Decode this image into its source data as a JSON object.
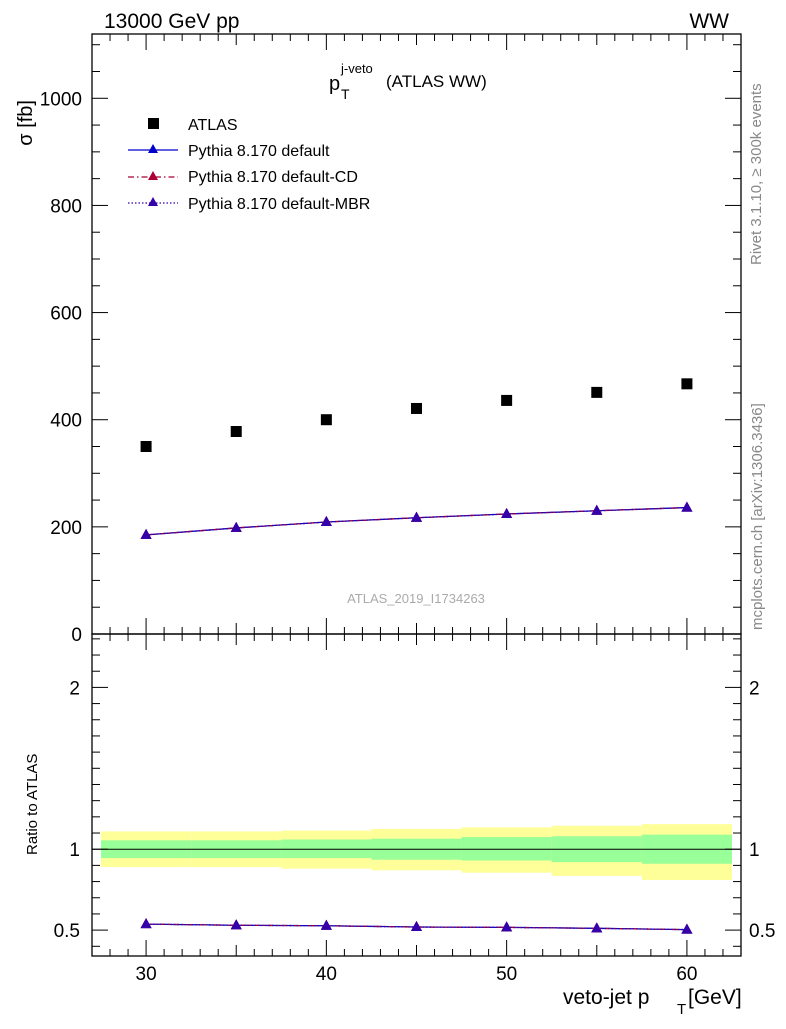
{
  "header": {
    "left": "13000 GeV pp",
    "right": "WW"
  },
  "side_labels": {
    "rivet": "Rivet 3.1.10, ≥ 300k events",
    "mcplots": "mcplots.cern.ch [arXiv:1306.3436]"
  },
  "watermark": "ATLAS_2019_I1734263",
  "chart_data": [
    {
      "type": "scatter",
      "title_main": "p",
      "title_sup": "j-veto",
      "title_sub": "T",
      "title_rest": "(ATLAS WW)",
      "ylabel": "σ [fb]",
      "ylim": [
        0,
        1120
      ],
      "yticks": [
        0,
        200,
        400,
        600,
        800,
        1000
      ],
      "ytick_labels": [
        "0",
        "200",
        "400",
        "600",
        "800",
        "1000"
      ],
      "xlim": [
        27.0,
        63.0
      ],
      "x": [
        30,
        35,
        40,
        45,
        50,
        55,
        60
      ],
      "series": [
        {
          "name": "ATLAS",
          "style": "square",
          "color": "#000000",
          "values": [
            350,
            378,
            400,
            421,
            436,
            451,
            467
          ]
        },
        {
          "name": "Pythia 8.170 default",
          "style": "solid",
          "color": "#0000cc",
          "values": [
            185,
            198,
            209,
            217,
            224,
            230,
            236
          ]
        },
        {
          "name": "Pythia 8.170 default-CD",
          "style": "dashdot",
          "color": "#aa0033",
          "values": [
            185,
            198,
            209,
            217,
            224,
            230,
            236
          ]
        },
        {
          "name": "Pythia 8.170 default-MBR",
          "style": "dotted",
          "color": "#3300aa",
          "values": [
            185,
            198,
            209,
            217,
            224,
            230,
            236
          ]
        }
      ],
      "legend_position": "top-left"
    },
    {
      "type": "line",
      "ylabel": "Ratio to ATLAS",
      "xlabel_main": "veto-jet p",
      "xlabel_sub": "T",
      "xlabel_rest": "[GeV]",
      "ylim": [
        0.34,
        2.33
      ],
      "yticks": [
        0.5,
        1,
        2
      ],
      "ytick_labels": [
        "0.5",
        "1",
        "2"
      ],
      "xlim": [
        27.0,
        63.0
      ],
      "xticks": [
        30,
        40,
        50,
        60
      ],
      "xtick_labels": [
        "30",
        "40",
        "50",
        "60"
      ],
      "bands": {
        "edges": [
          27.5,
          32.5,
          37.5,
          42.5,
          47.5,
          52.5,
          57.5,
          62.5
        ],
        "stat_low": [
          0.945,
          0.945,
          0.945,
          0.935,
          0.93,
          0.92,
          0.91
        ],
        "stat_high": [
          1.055,
          1.055,
          1.06,
          1.065,
          1.075,
          1.08,
          1.09
        ],
        "total_low": [
          0.89,
          0.89,
          0.88,
          0.87,
          0.855,
          0.835,
          0.81
        ],
        "total_high": [
          1.11,
          1.11,
          1.115,
          1.125,
          1.135,
          1.145,
          1.155
        ],
        "stat_color": "#99ff99",
        "total_color": "#ffff99"
      },
      "series": [
        {
          "name": "Pythia 8.170 default",
          "color": "#0000cc",
          "values": [
            0.537,
            0.53,
            0.527,
            0.519,
            0.517,
            0.511,
            0.503
          ]
        },
        {
          "name": "Pythia 8.170 default-CD",
          "color": "#aa0033",
          "values": [
            0.537,
            0.53,
            0.527,
            0.519,
            0.517,
            0.511,
            0.503
          ]
        },
        {
          "name": "Pythia 8.170 default-MBR",
          "color": "#3300aa",
          "values": [
            0.537,
            0.53,
            0.527,
            0.519,
            0.517,
            0.511,
            0.503
          ]
        }
      ]
    }
  ]
}
